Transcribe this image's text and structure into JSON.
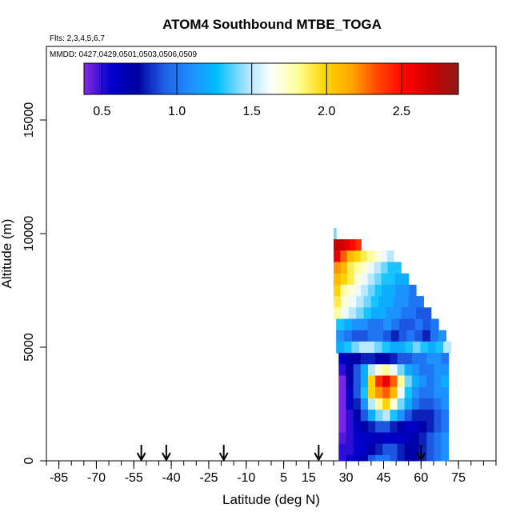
{
  "chart_data": {
    "type": "heatmap",
    "title": "ATOM4 Southbound MTBE_TOGA",
    "flights_label": "Flts: 2,3,4,5,6,7",
    "dates_label": "MMDD: 0427,0429,0501,0503,0506,0509",
    "xlabel": "Latitude (deg N)",
    "ylabel": "Altitude (m)",
    "xlim": [
      -90,
      90
    ],
    "ylim": [
      0,
      18000
    ],
    "x_ticks": [
      -85,
      -70,
      -55,
      -40,
      -25,
      -10,
      5,
      15,
      30,
      45,
      60,
      75
    ],
    "x_minor_step": 5,
    "y_ticks": [
      0,
      5000,
      10000,
      15000
    ],
    "colorbar": {
      "range": [
        0.38,
        2.88
      ],
      "ticks": [
        0.5,
        1.0,
        1.5,
        2.0,
        2.5
      ],
      "tick_labels": [
        "0.5",
        "1.0",
        "1.5",
        "2.0",
        "2.5"
      ],
      "colors": [
        "#8a2be2",
        "#0000cd",
        "#0000a0",
        "#1e5fe6",
        "#1e90ff",
        "#00bfff",
        "#a0e0ff",
        "#ffffff",
        "#ffff99",
        "#ffd700",
        "#ffa500",
        "#ff4500",
        "#ff0000",
        "#cc0000",
        "#8b1a1a"
      ]
    },
    "arrow_latitudes": [
      -52,
      -42,
      -19,
      19,
      60
    ],
    "altitude_bins": [
      {
        "alt": 10000,
        "lat_range": [
          25,
          26
        ],
        "values": [
          1.4
        ]
      },
      {
        "alt": 9500,
        "lat_range": [
          25,
          36
        ],
        "values": [
          2.7,
          2.7,
          2.6,
          2.5,
          2.4
        ]
      },
      {
        "alt": 9000,
        "lat_range": [
          25,
          49
        ],
        "values": [
          2.6,
          2.3,
          2.1,
          2.0,
          1.9,
          1.8,
          1.7,
          1.6,
          1.5
        ]
      },
      {
        "alt": 8500,
        "lat_range": [
          25,
          52
        ],
        "values": [
          2.2,
          2.1,
          1.9,
          1.8,
          1.7,
          1.6,
          1.5,
          1.4,
          1.3,
          1.3
        ]
      },
      {
        "alt": 8000,
        "lat_range": [
          25,
          55
        ],
        "values": [
          2.1,
          2.0,
          1.9,
          1.7,
          1.6,
          1.5,
          1.4,
          1.3,
          1.3,
          1.2,
          1.2
        ]
      },
      {
        "alt": 7500,
        "lat_range": [
          25,
          58
        ],
        "values": [
          2.0,
          1.8,
          1.7,
          1.6,
          1.5,
          1.4,
          1.3,
          1.2,
          1.2,
          1.1,
          1.1,
          1.0
        ]
      },
      {
        "alt": 7000,
        "lat_range": [
          25,
          61
        ],
        "values": [
          1.9,
          1.7,
          1.6,
          1.5,
          1.4,
          1.3,
          1.2,
          1.2,
          1.1,
          1.1,
          1.0,
          1.0
        ]
      },
      {
        "alt": 6500,
        "lat_range": [
          25,
          64
        ],
        "values": [
          1.8,
          1.6,
          1.5,
          1.4,
          1.3,
          1.2,
          1.2,
          1.1,
          1.1,
          1.0,
          1.0,
          0.9,
          0.9
        ]
      },
      {
        "alt": 6000,
        "lat_range": [
          26,
          67
        ],
        "values": [
          1.3,
          1.2,
          1.1,
          1.1,
          1.0,
          1.0,
          1.1,
          1.0,
          0.9,
          0.9,
          1.0,
          0.9,
          1.0
        ]
      },
      {
        "alt": 5500,
        "lat_range": [
          26,
          70
        ],
        "values": [
          1.1,
          1.0,
          0.9,
          0.9,
          1.0,
          1.0,
          0.9,
          0.8,
          0.9,
          1.0,
          0.9,
          0.8,
          1.0,
          1.1
        ]
      },
      {
        "alt": 5000,
        "lat_range": [
          26,
          72
        ],
        "values": [
          1.2,
          1.3,
          1.4,
          1.5,
          1.5,
          1.4,
          1.3,
          1.2,
          1.2,
          1.3,
          1.4,
          1.3,
          1.2,
          1.3,
          1.5
        ]
      },
      {
        "alt": 4500,
        "lat_range": [
          27,
          71
        ],
        "values": [
          0.6,
          0.7,
          0.7,
          0.8,
          0.8,
          0.7,
          0.7,
          0.8,
          0.9,
          0.9,
          1.0,
          1.0,
          1.1,
          1.1,
          1.0
        ]
      },
      {
        "alt": 4000,
        "lat_range": [
          27,
          71
        ],
        "values": [
          0.5,
          0.7,
          0.9,
          1.2,
          1.5,
          1.7,
          1.8,
          1.6,
          1.4,
          1.2,
          1.1,
          1.0,
          1.0,
          1.1,
          1.1
        ]
      },
      {
        "alt": 3500,
        "lat_range": [
          27,
          71
        ],
        "values": [
          0.4,
          0.7,
          0.9,
          1.2,
          2.0,
          2.4,
          2.6,
          2.3,
          1.8,
          1.4,
          1.2,
          1.1,
          1.0,
          1.1,
          1.2
        ]
      },
      {
        "alt": 3000,
        "lat_range": [
          27,
          71
        ],
        "values": [
          0.4,
          0.6,
          0.9,
          1.3,
          2.0,
          2.2,
          2.3,
          2.1,
          1.6,
          1.3,
          1.1,
          1.0,
          1.0,
          1.1,
          1.1
        ]
      },
      {
        "alt": 2500,
        "lat_range": [
          27,
          71
        ],
        "values": [
          0.4,
          0.6,
          0.8,
          1.1,
          1.5,
          1.8,
          2.0,
          1.7,
          1.4,
          1.2,
          1.0,
          0.9,
          0.9,
          1.0,
          1.1
        ]
      },
      {
        "alt": 2000,
        "lat_range": [
          27,
          71
        ],
        "values": [
          0.4,
          0.5,
          0.7,
          0.9,
          1.2,
          1.4,
          1.5,
          1.3,
          1.1,
          0.9,
          0.8,
          0.8,
          0.8,
          0.9,
          1.0
        ]
      },
      {
        "alt": 1500,
        "lat_range": [
          27,
          71
        ],
        "values": [
          0.4,
          0.5,
          0.6,
          0.7,
          0.8,
          0.9,
          0.9,
          0.8,
          0.7,
          0.6,
          0.6,
          0.7,
          0.8,
          0.9,
          1.0
        ]
      },
      {
        "alt": 1000,
        "lat_range": [
          27,
          71
        ],
        "values": [
          0.45,
          0.5,
          0.55,
          0.6,
          0.6,
          0.65,
          0.6,
          0.6,
          0.6,
          0.65,
          0.7,
          0.8,
          0.9,
          1.0,
          1.1
        ]
      },
      {
        "alt": 500,
        "lat_range": [
          27,
          71
        ],
        "values": [
          0.5,
          0.5,
          0.55,
          0.6,
          0.7,
          0.8,
          0.9,
          0.9,
          0.8,
          0.7,
          0.7,
          0.8,
          0.9,
          1.0,
          1.1
        ]
      },
      {
        "alt": 0,
        "lat_range": [
          27,
          71
        ],
        "values": [
          0.5,
          0.55,
          0.6,
          0.7,
          0.9,
          1.0,
          1.0,
          0.9,
          0.8,
          0.7,
          0.7,
          0.8,
          0.9,
          1.0,
          1.1
        ]
      }
    ]
  }
}
